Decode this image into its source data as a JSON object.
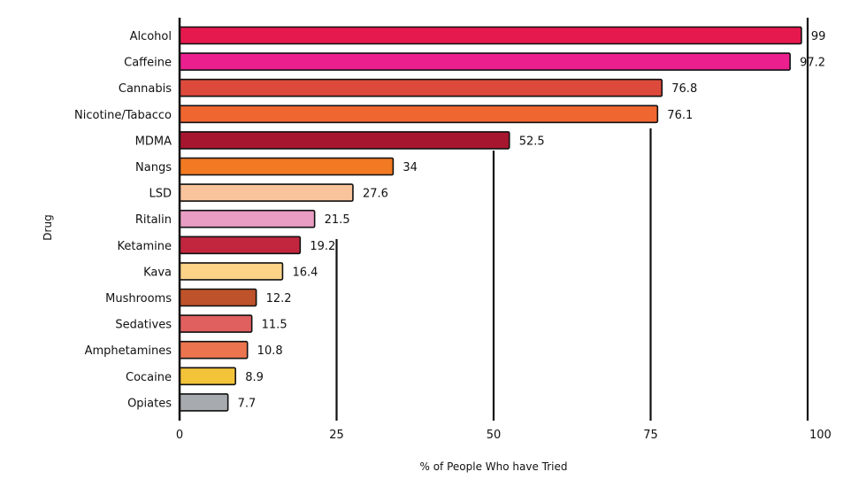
{
  "chart_data": {
    "type": "bar",
    "orientation": "horizontal",
    "title": "",
    "xlabel": "% of People Who have Tried",
    "ylabel": "Drug",
    "xlim": [
      0,
      100
    ],
    "xticks": [
      "0",
      "25",
      "50",
      "75",
      "100"
    ],
    "grid": "vertical lines behind bars",
    "categories": [
      "Alcohol",
      "Caffeine",
      "Cannabis",
      "Nicotine/Tabacco",
      "MDMA",
      "Nangs",
      "LSD",
      "Ritalin",
      "Ketamine",
      "Kava",
      "Mushrooms",
      "Sedatives",
      "Amphetamines",
      "Cocaine",
      "Opiates"
    ],
    "values": [
      99,
      97.2,
      76.8,
      76.1,
      52.5,
      34,
      27.6,
      21.5,
      19.2,
      16.4,
      12.2,
      11.5,
      10.8,
      8.9,
      7.7
    ],
    "value_labels": [
      "99",
      "97.2",
      "76.8",
      "76.1",
      "52.5",
      "34",
      "27.6",
      "21.5",
      "19.2",
      "16.4",
      "12.2",
      "11.5",
      "10.8",
      "8.9",
      "7.7"
    ],
    "colors": [
      "#e5194d",
      "#ec1f8f",
      "#dd4a3c",
      "#f06630",
      "#a7162f",
      "#f17a22",
      "#f9c39c",
      "#e99dc4",
      "#c2263f",
      "#fdd388",
      "#be522a",
      "#e0605f",
      "#ec7550",
      "#f3c33a",
      "#a7abaf"
    ]
  }
}
